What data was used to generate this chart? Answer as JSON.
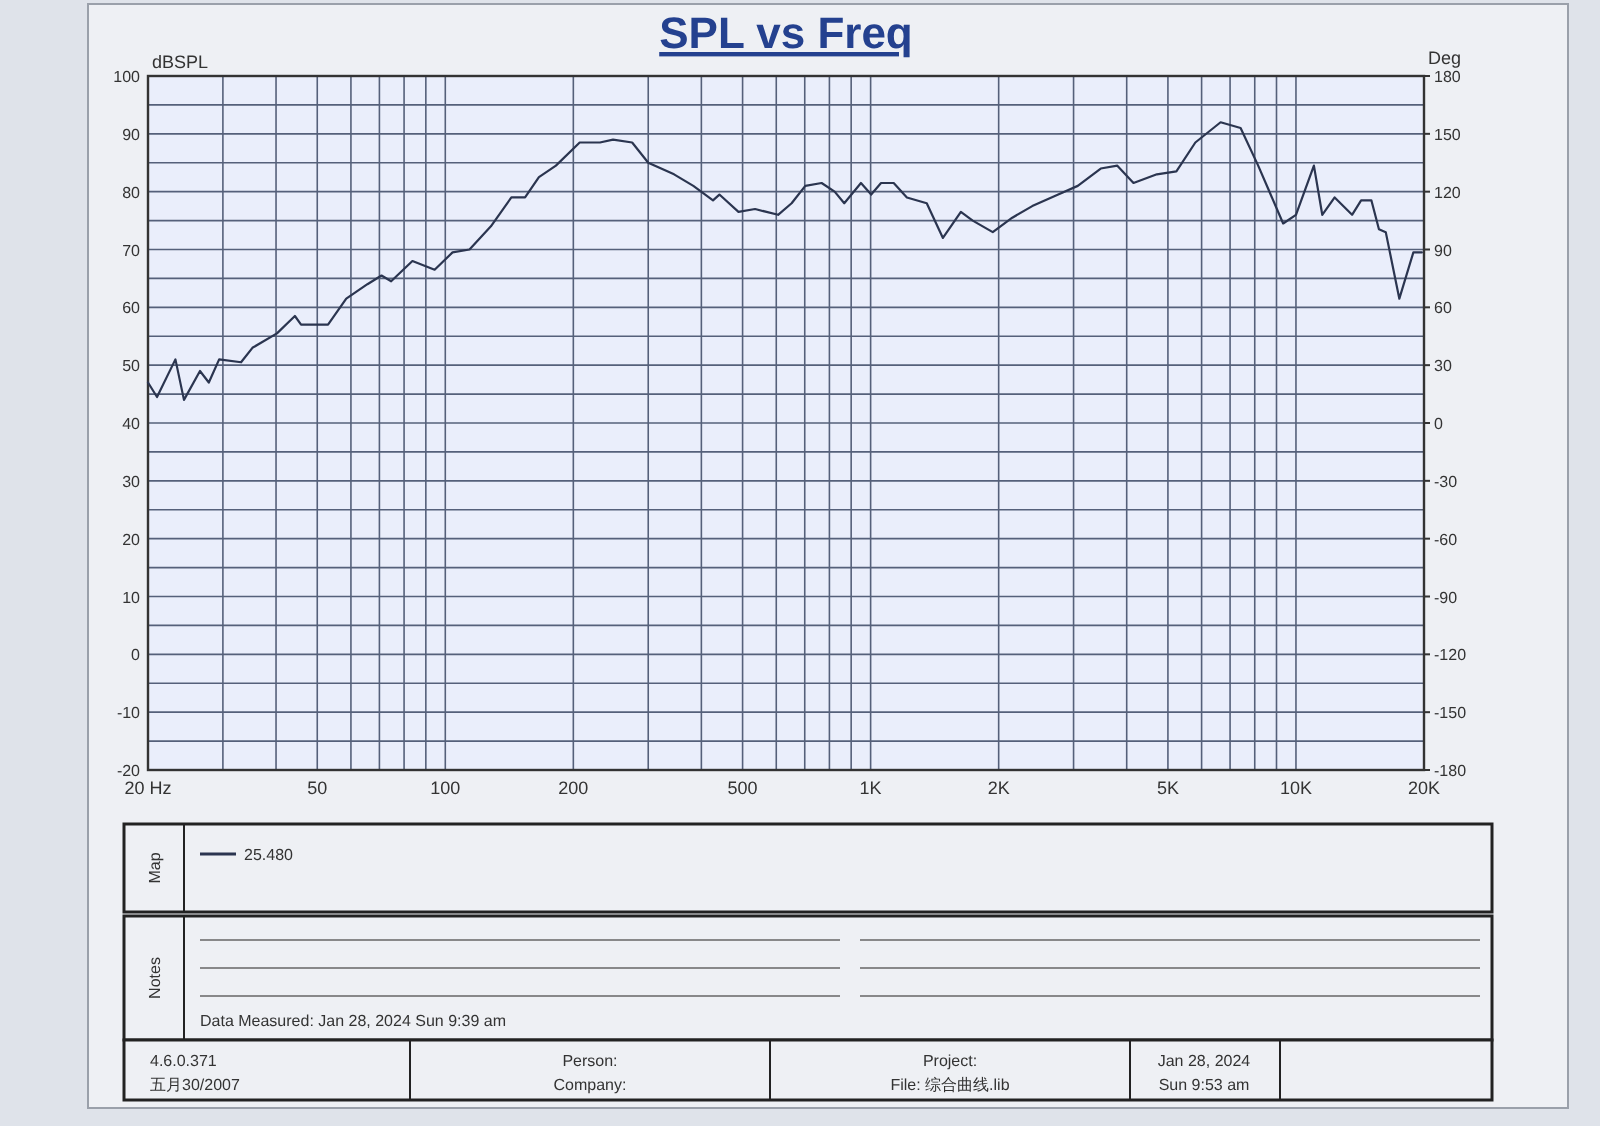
{
  "chart_data": {
    "type": "line",
    "title": "SPL vs Freq",
    "ylabel": "dBSPL",
    "y2label": "Deg",
    "legend_title": "Map",
    "log": "x",
    "grid": true,
    "legend": "bottom",
    "xlim": [
      20,
      20000
    ],
    "ylim": [
      -20,
      100
    ],
    "y2lim": [
      -180,
      180
    ],
    "xticks": [
      {
        "value": 20,
        "label": "20 Hz"
      },
      {
        "value": 30,
        "label": null
      },
      {
        "value": 40,
        "label": null
      },
      50,
      {
        "value": 60,
        "label": null
      },
      {
        "value": 70,
        "label": null
      },
      {
        "value": 80,
        "label": null
      },
      {
        "value": 90,
        "label": null
      },
      100,
      200,
      {
        "value": 300,
        "label": null
      },
      {
        "value": 400,
        "label": null
      },
      500,
      {
        "value": 600,
        "label": null
      },
      {
        "value": 700,
        "label": null
      },
      {
        "value": 800,
        "label": null
      },
      {
        "value": 900,
        "label": null
      },
      {
        "value": 1000,
        "label": "1K"
      },
      {
        "value": 2000,
        "label": "2K"
      },
      {
        "value": 3000,
        "label": null
      },
      {
        "value": 4000,
        "label": null
      },
      {
        "value": 5000,
        "label": "5K"
      },
      {
        "value": 6000,
        "label": null
      },
      {
        "value": 7000,
        "label": null
      },
      {
        "value": 8000,
        "label": null
      },
      {
        "value": 9000,
        "label": null
      },
      {
        "value": 10000,
        "label": "10K"
      },
      {
        "value": 20000,
        "label": "20K"
      }
    ],
    "yticks": [
      -20,
      {
        "value": -15,
        "label": null
      },
      -10,
      {
        "value": -5,
        "label": null
      },
      0,
      {
        "value": 5,
        "label": null
      },
      10,
      {
        "value": 15,
        "label": null
      },
      20,
      {
        "value": 25,
        "label": null
      },
      30,
      {
        "value": 35,
        "label": null
      },
      40,
      {
        "value": 45,
        "label": null
      },
      50,
      {
        "value": 55,
        "label": null
      },
      60,
      {
        "value": 65,
        "label": null
      },
      70,
      {
        "value": 75,
        "label": null
      },
      80,
      {
        "value": 85,
        "label": null
      },
      90,
      {
        "value": 95,
        "label": null
      },
      100
    ],
    "y2ticks": [
      -180,
      -150,
      -120,
      -90,
      -60,
      -30,
      0,
      30,
      60,
      90,
      120,
      150,
      180
    ],
    "series": [
      {
        "name": "25.480",
        "color": "#2b3550",
        "x": [
          20,
          21,
          23.2,
          24.3,
          26.5,
          27.8,
          29.4,
          33.1,
          35.2,
          40.2,
          44.3,
          45.8,
          53,
          58.5,
          65.6,
          70.8,
          74.6,
          83.7,
          94.4,
          104,
          114,
          128,
          143,
          154,
          166,
          182,
          207,
          231,
          248,
          275,
          300,
          345,
          383,
          426,
          441,
          489,
          535,
          606,
          652,
          702,
          767,
          823,
          867,
          949,
          1003,
          1058,
          1133,
          1217,
          1355,
          1479,
          1630,
          1738,
          1937,
          2153,
          2399,
          2761,
          3069,
          3475,
          3802,
          4150,
          4710,
          5235,
          5800,
          6650,
          7410,
          8150,
          9330,
          10000,
          11020,
          11530,
          12330,
          13550,
          14230,
          15040,
          15670,
          16260,
          17500,
          18880,
          19770
        ],
        "values": [
          47,
          44.5,
          51,
          44,
          49,
          47,
          51,
          50.5,
          53,
          55.5,
          58.5,
          57,
          57,
          61.5,
          64,
          65.5,
          64.5,
          68,
          66.5,
          69.5,
          70,
          74,
          79,
          79,
          82.5,
          84.5,
          88.5,
          88.5,
          89,
          88.5,
          85,
          83,
          81,
          78.5,
          79.5,
          76.5,
          77,
          76,
          78,
          81,
          81.5,
          80,
          78,
          81.5,
          79.5,
          81.5,
          81.5,
          79,
          78,
          72,
          76.5,
          75,
          73,
          75.5,
          77.5,
          79.5,
          81,
          84,
          84.5,
          81.5,
          83,
          83.5,
          88.5,
          92,
          91,
          84.5,
          74.5,
          76,
          84.5,
          76,
          79,
          76,
          78.5,
          78.5,
          73.5,
          73,
          61.5,
          69.5,
          69.5
        ]
      }
    ],
    "annotations": [
      "Notes",
      "Data Measured: Jan 28, 2024  Sun  9:39 am",
      "4.6.0.371",
      "五月30/2007",
      "Person:",
      "Company:",
      "Project:",
      "File: 综合曲线.lib",
      "Jan 28, 2024",
      "Sun  9:53 am"
    ]
  }
}
